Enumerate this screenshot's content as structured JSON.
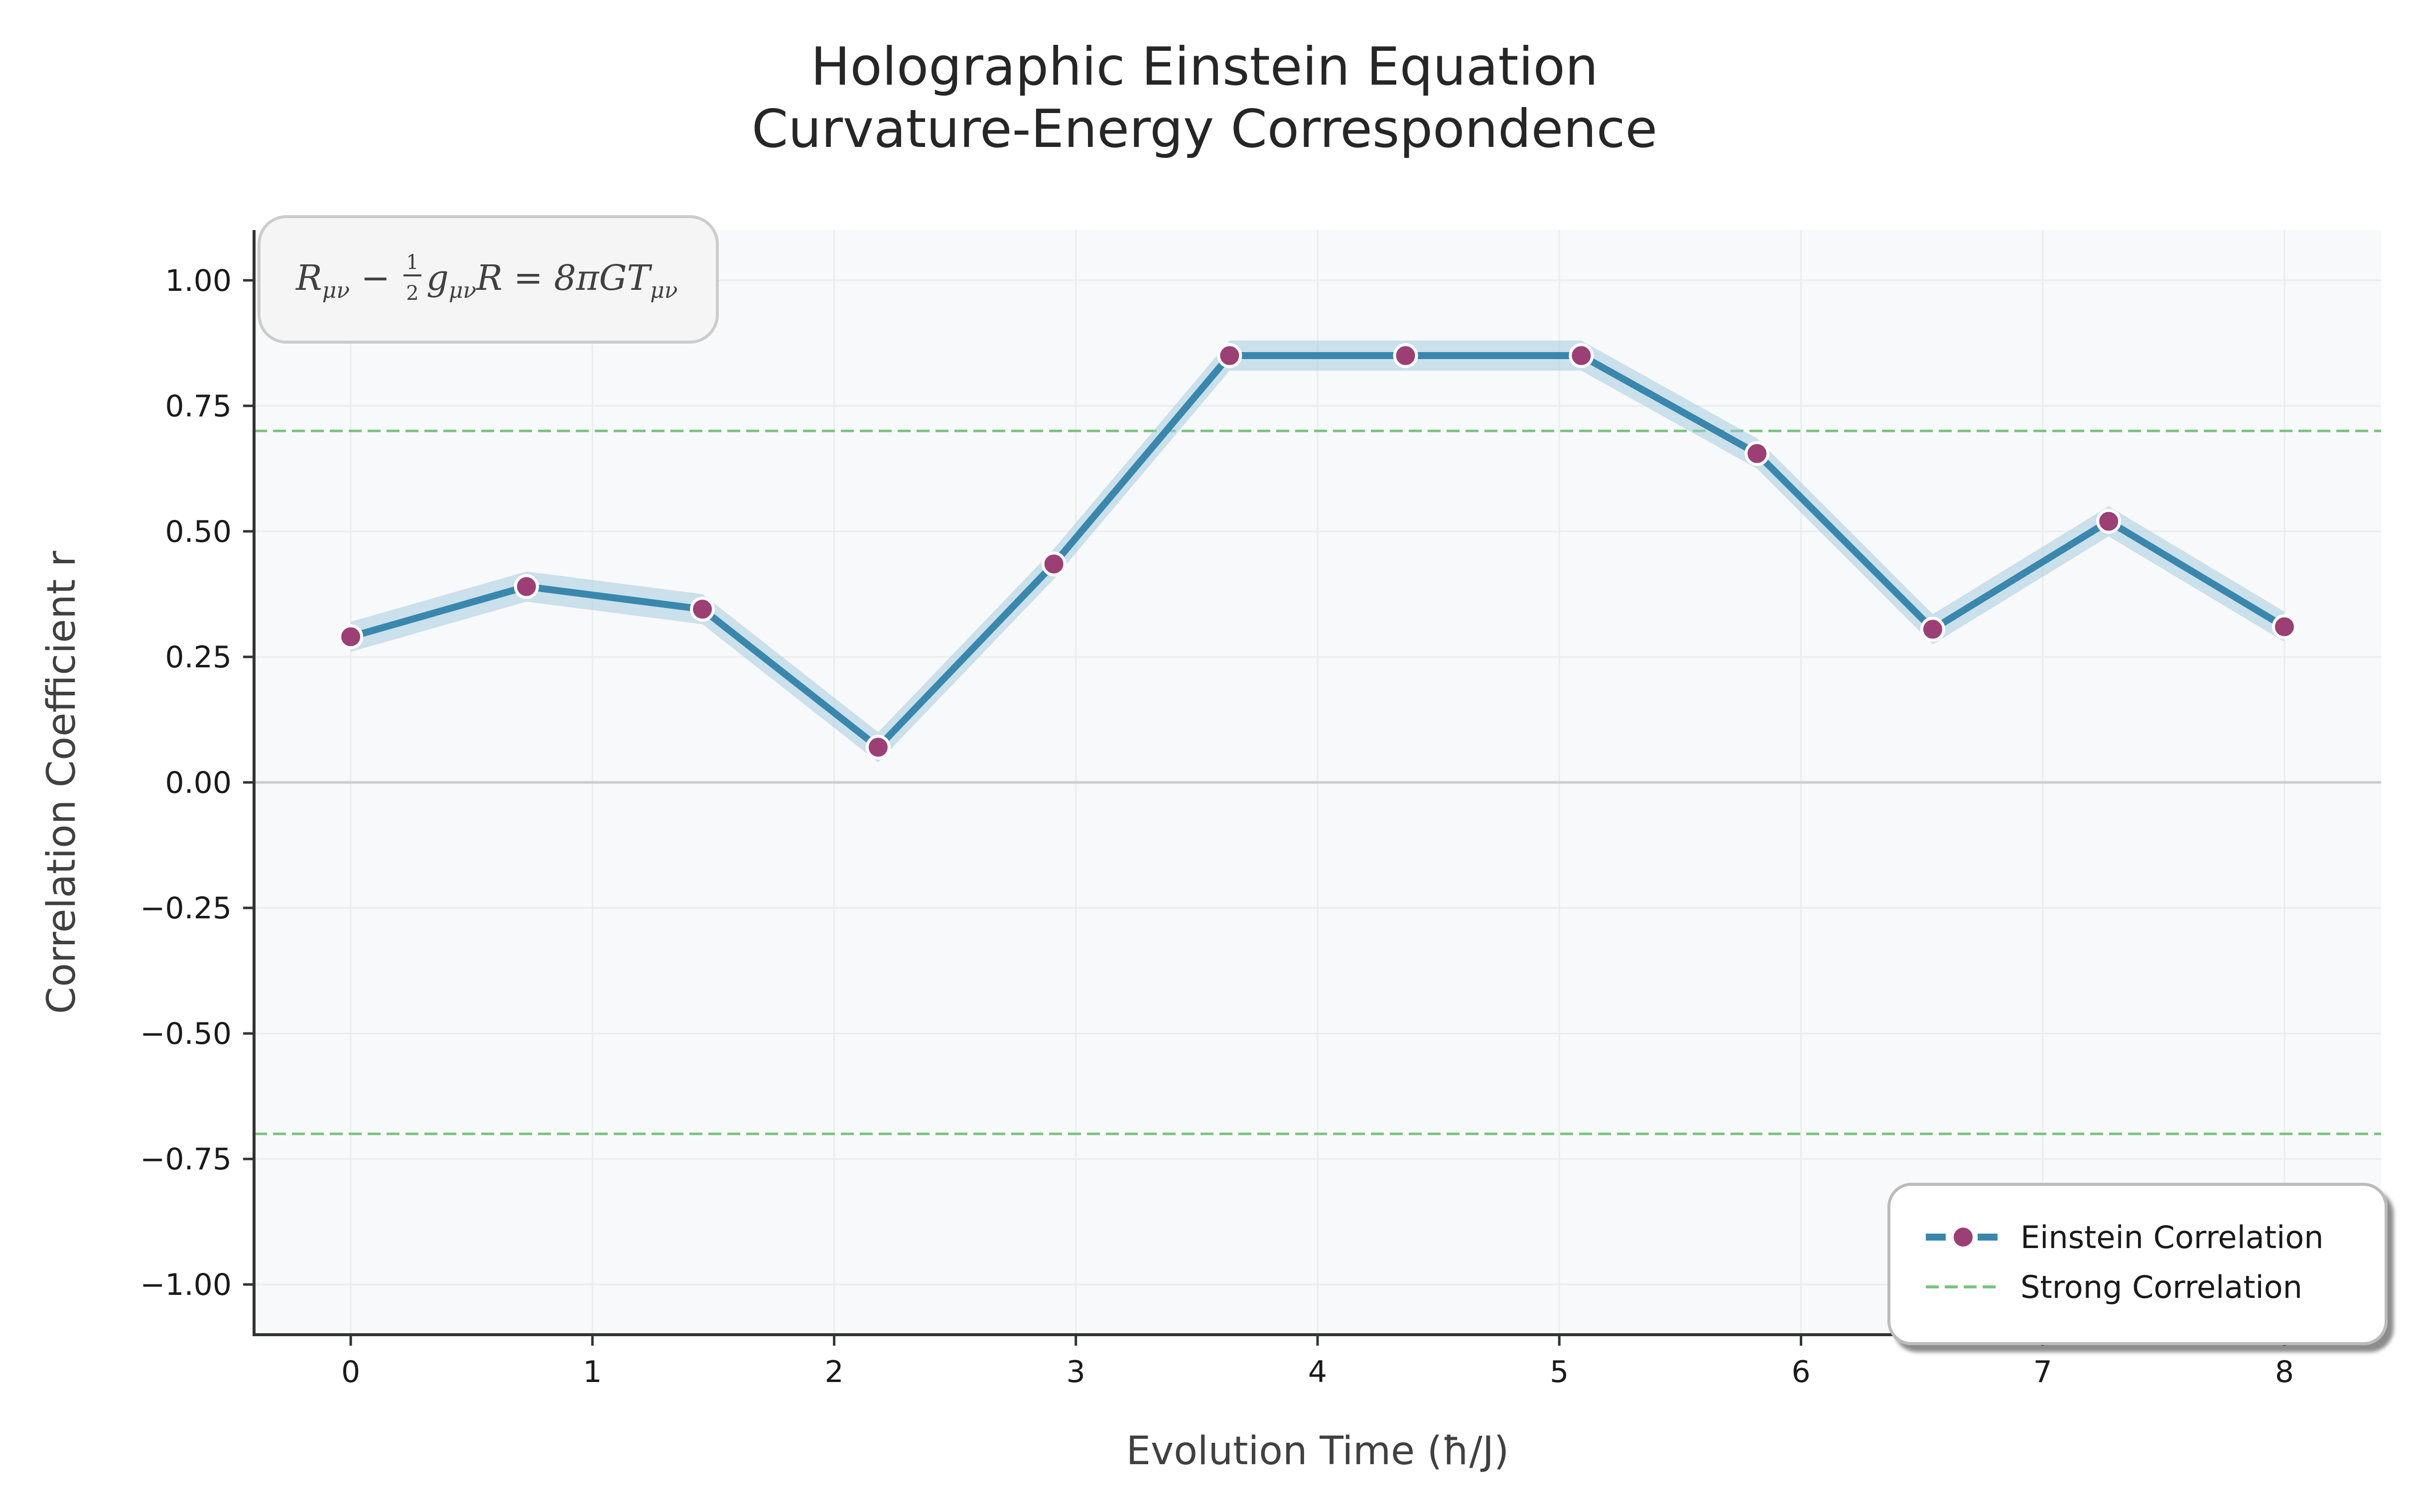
{
  "chart_data": {
    "type": "line",
    "title": [
      "Holographic Einstein Equation",
      "Curvature-Energy Correspondence"
    ],
    "xlabel": "Evolution Time (ħ/J)",
    "ylabel": "Correlation Coefficient r",
    "xlim": [
      -0.4,
      8.4
    ],
    "ylim": [
      -1.1,
      1.1
    ],
    "xticks": [
      0,
      1,
      2,
      3,
      4,
      5,
      6,
      7,
      8
    ],
    "yticks": [
      1.0,
      0.75,
      0.5,
      0.25,
      0.0,
      -0.25,
      -0.5,
      -0.75,
      -1.0
    ],
    "ytick_labels": [
      "1.00",
      "0.75",
      "0.50",
      "0.25",
      "0.00",
      "−0.25",
      "−0.50",
      "−0.75",
      "−1.00"
    ],
    "grid": true,
    "legend_position": "bottom-right",
    "series": [
      {
        "name": "Einstein Correlation",
        "line_color": "#3a87ad",
        "marker_color": "#9c3f74",
        "band_color": "#9cc7dc",
        "band_halfwidth": 0.03,
        "x": [
          0,
          0.727,
          1.455,
          2.182,
          2.909,
          3.636,
          4.364,
          5.091,
          5.818,
          6.545,
          7.273,
          8.0
        ],
        "y": [
          0.29,
          0.39,
          0.345,
          0.07,
          0.435,
          0.85,
          0.85,
          0.85,
          0.655,
          0.305,
          0.52,
          0.31
        ]
      }
    ],
    "reference_lines": [
      {
        "name": "Strong Correlation",
        "y": 0.7,
        "color": "#77c47e",
        "style": "dashed"
      },
      {
        "name": "",
        "y": -0.7,
        "color": "#77c47e",
        "style": "dashed"
      }
    ],
    "zero_line": {
      "y": 0.0,
      "color": "#cccccc"
    },
    "annotation": {
      "parts": [
        "R",
        "μν",
        " − ",
        "1",
        "2",
        "g",
        "μν",
        "R = 8πGT",
        "μν"
      ]
    }
  }
}
